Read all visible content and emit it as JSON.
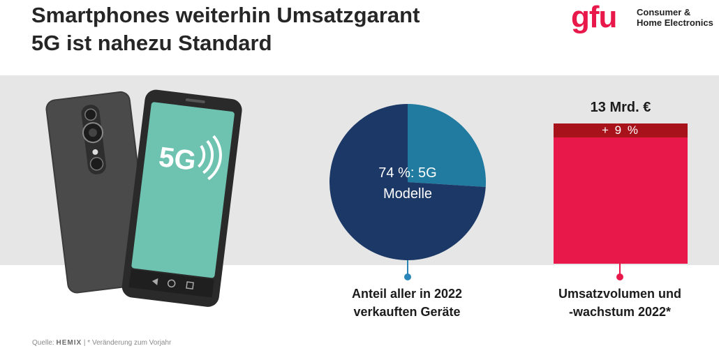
{
  "title": {
    "line1": "Smartphones weiterhin Umsatzgarant",
    "line2": "5G ist nahezu Standard"
  },
  "logo": {
    "mark": "gfu",
    "line1": "Consumer &",
    "line2": "Home Electronics"
  },
  "phone": {
    "screen_text": "5G"
  },
  "source": {
    "prefix": "Quelle:",
    "brand": "HEMIX",
    "note": "| * Veränderung zum Vorjahr"
  },
  "colors": {
    "band": "#e6e6e6",
    "pie_5g": "#1b3866",
    "pie_other": "#217a9f",
    "bar_base": "#e8194a",
    "bar_growth": "#a8131b",
    "pie_connector": "#2a86b9",
    "bar_connector": "#e8194a"
  },
  "chart_data": [
    {
      "type": "pie",
      "slices": [
        {
          "label": "74 %: 5G Modelle",
          "value": 74,
          "color": "#1b3866"
        },
        {
          "label": "",
          "value": 26,
          "color": "#217a9f"
        }
      ],
      "slice_label_line1": "74 %: 5G",
      "slice_label_line2": "Modelle",
      "caption_line1": "Anteil aller in 2022",
      "caption_line2": "verkauften Geräte"
    },
    {
      "type": "bar",
      "categories": [
        "2022"
      ],
      "value_label": "13 Mrd. €",
      "value": 13,
      "growth_label": "+ 9 %",
      "growth_pct": 9,
      "caption_line1": "Umsatzvolumen und",
      "caption_line2": "-wachstum 2022*"
    }
  ]
}
